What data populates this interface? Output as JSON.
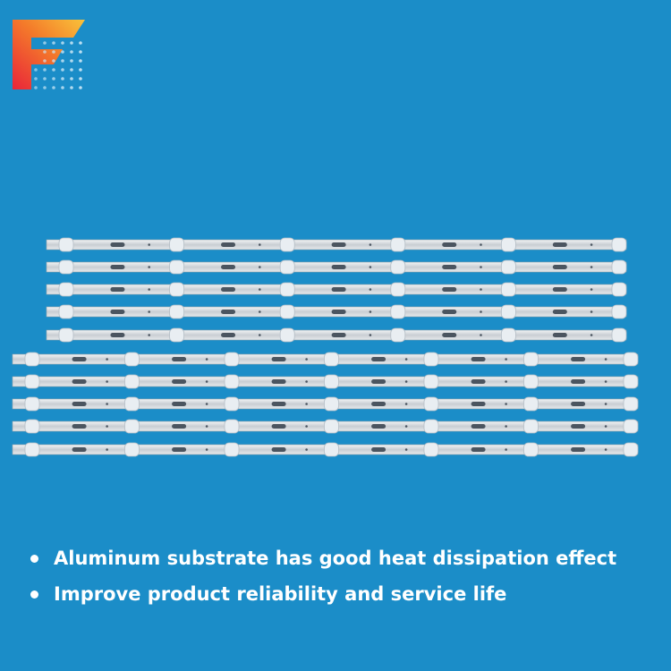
{
  "bullets": [
    "Aluminum substrate has good heat dissipation effect",
    "Improve product reliability and service life"
  ]
}
